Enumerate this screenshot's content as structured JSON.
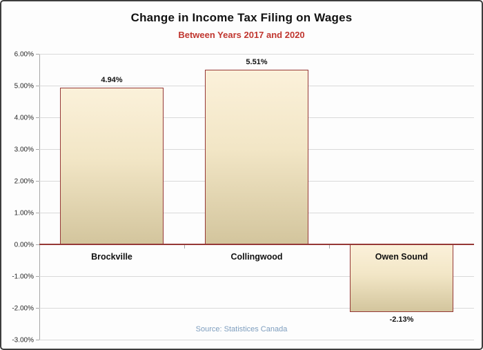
{
  "chart": {
    "title": "Change in Income Tax Filing on Wages",
    "subtitle": "Between Years 2017 and 2020",
    "source": "Source: Statistices Canada",
    "colors": {
      "subtitle_red": "#c0362f",
      "bar_border": "#953735",
      "bar_fill_top": "#fbf1da",
      "bar_fill_bottom": "#d3c59d",
      "zero_line": "#953735",
      "gridline": "#d9d9d9",
      "source_text": "#7d9dbe"
    }
  },
  "chart_data": {
    "type": "bar",
    "title": "Change in Income Tax Filing on Wages",
    "subtitle": "Between Years 2017 and 2020",
    "categories": [
      "Brockville",
      "Collingwood",
      "Owen Sound"
    ],
    "values": [
      4.94,
      5.51,
      -2.13
    ],
    "value_labels": [
      "4.94%",
      "5.51%",
      "-2.13%"
    ],
    "xlabel": "",
    "ylabel": "",
    "ylim": [
      -3,
      6
    ],
    "ytick_step": 1,
    "ytick_labels": [
      "6.00%",
      "5.00%",
      "4.00%",
      "3.00%",
      "2.00%",
      "1.00%",
      "0.00%",
      "-1.00%",
      "-2.00%",
      "-3.00%"
    ],
    "grid": true,
    "legend_position": "none",
    "source": "Source: Statistices Canada"
  }
}
